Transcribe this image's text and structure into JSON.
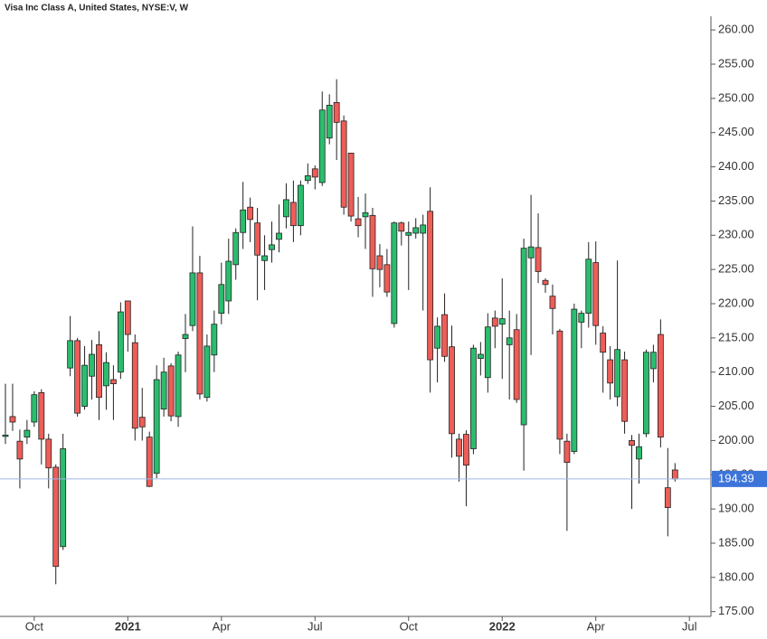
{
  "chart_data": {
    "type": "candlestick",
    "title": "Visa Inc Class A, United States, NYSE:V, W",
    "categories": [
      null,
      null,
      null,
      null,
      "Oct",
      null,
      null,
      null,
      null,
      null,
      null,
      null,
      null,
      null,
      null,
      null,
      null,
      "2021",
      null,
      null,
      null,
      null,
      null,
      null,
      null,
      null,
      null,
      null,
      null,
      null,
      "Apr",
      null,
      null,
      null,
      null,
      null,
      null,
      null,
      null,
      null,
      null,
      null,
      null,
      "Jul",
      null,
      null,
      null,
      null,
      null,
      null,
      null,
      null,
      null,
      null,
      null,
      null,
      "Oct",
      null,
      null,
      null,
      null,
      null,
      null,
      null,
      null,
      null,
      null,
      null,
      null,
      "2022",
      null,
      null,
      null,
      null,
      null,
      null,
      null,
      null,
      null,
      null,
      null,
      null,
      "Apr",
      null,
      null,
      null,
      null,
      null,
      null,
      null,
      null,
      null,
      null,
      null,
      null,
      "Jul"
    ],
    "open": [
      200.6,
      203.5,
      199.9,
      200.5,
      202.7,
      207,
      200.2,
      196.1,
      184.5,
      210.6,
      214.6,
      205,
      209.4,
      214,
      208,
      208.9,
      210,
      220.4,
      214.3,
      203.4,
      200.5,
      195.2,
      204.6,
      210.9,
      203.5,
      214.9,
      216.8,
      224.5,
      206.3,
      212.5,
      218.6,
      220.4,
      225.7,
      230.4,
      234.1,
      231.8,
      226.3,
      227.9,
      229.4,
      232.7,
      234.8,
      231.4,
      238,
      239.7,
      237.7,
      244.2,
      249.4,
      246.7,
      242,
      232.4,
      232.7,
      232.9,
      227,
      225.7,
      217.1,
      231.8,
      230,
      230.3,
      230.3,
      233.5,
      213.5,
      218.4,
      213.7,
      200.2,
      200.9,
      198.8,
      212,
      209.2,
      217.9,
      217,
      214,
      216.2,
      202.3,
      226.7,
      228.2,
      223.4,
      221.1,
      216,
      199.9,
      198.4,
      217.3,
      218.6,
      226,
      215.7,
      211.8,
      206.4,
      211.8,
      200,
      197.3,
      201,
      210.5,
      215.5,
      193.1,
      195.7,
      null,
      null
    ],
    "high": [
      208.3,
      208.3,
      201.6,
      203,
      207.2,
      207.5,
      201,
      196.5,
      201,
      218.2,
      215,
      213.8,
      214.7,
      216,
      212.9,
      211,
      220.2,
      220.4,
      215.5,
      207.7,
      201.3,
      211,
      212.1,
      211.3,
      213,
      218.5,
      231.3,
      227,
      215.5,
      219,
      226,
      229.5,
      231,
      237.8,
      235.5,
      234,
      230,
      232,
      234.5,
      237.6,
      238,
      238,
      240.5,
      240.2,
      251,
      250.6,
      252.8,
      247.5,
      242,
      235.6,
      236.1,
      234,
      228.7,
      228,
      232,
      232,
      232,
      232.5,
      233,
      237,
      218,
      221.5,
      216.8,
      201,
      201.5,
      214,
      214.4,
      218.6,
      219,
      223.7,
      219,
      218.5,
      229.5,
      235.9,
      233.2,
      223.7,
      222.8,
      216.3,
      201,
      220,
      219,
      229,
      229.1,
      216.7,
      213.8,
      226.3,
      213,
      200.8,
      201,
      213.3,
      214,
      217.7,
      198.9,
      196.7,
      null,
      null
    ],
    "low": [
      199.5,
      201.4,
      193,
      199.5,
      202,
      196.5,
      193,
      179,
      184,
      209.4,
      203.5,
      204.5,
      206,
      203,
      204.5,
      203,
      209,
      213,
      200,
      200,
      193.2,
      194.5,
      203.5,
      202.8,
      202,
      210,
      216,
      206,
      205.7,
      210,
      217,
      218.5,
      223.5,
      228,
      229,
      220.5,
      222,
      226,
      227.5,
      231,
      229,
      230,
      237.5,
      236.7,
      237.2,
      243.3,
      241,
      233,
      232,
      229.7,
      228,
      221,
      222.4,
      221,
      216.5,
      228.5,
      222,
      229.5,
      219,
      207,
      208.5,
      211.5,
      197.5,
      194,
      190.4,
      198,
      209.5,
      207,
      213.5,
      209,
      206,
      205.5,
      195.6,
      212.5,
      223,
      221.6,
      215.5,
      198,
      186.8,
      198,
      213.5,
      216.5,
      214,
      207,
      206,
      205,
      201,
      190,
      193.7,
      200.5,
      208.5,
      199,
      186,
      194,
      null,
      null
    ],
    "close": [
      200.8,
      202.7,
      197.3,
      201.5,
      206.7,
      200.2,
      196,
      181.6,
      198.8,
      214.6,
      204,
      211,
      212.6,
      206.3,
      211.4,
      208.3,
      218.8,
      215.5,
      201.8,
      202,
      193.3,
      208.9,
      210,
      203.6,
      212.5,
      215.5,
      224.5,
      206.8,
      213.8,
      217,
      222.8,
      226.2,
      230.4,
      233.7,
      232.3,
      227.1,
      227,
      228.6,
      230.3,
      235.2,
      231.4,
      237.3,
      238.7,
      238.5,
      248.3,
      249,
      246.5,
      234.1,
      232.8,
      231.4,
      233.3,
      225.1,
      225,
      221.7,
      231.8,
      230.6,
      230.4,
      231.1,
      231.5,
      211.8,
      216.7,
      212.3,
      201,
      197.7,
      196.4,
      213.5,
      212.6,
      216.6,
      216.7,
      217.8,
      215,
      206,
      228.1,
      228.3,
      224.7,
      222.8,
      219.3,
      200.2,
      196.8,
      219.2,
      218.6,
      226.5,
      216.8,
      212.9,
      208.4,
      213.3,
      202.8,
      199.3,
      199.1,
      212.9,
      212.9,
      200.5,
      190.2,
      194.39,
      null,
      null
    ],
    "up_color": "#2bbd6e",
    "down_color": "#ee5d57",
    "last_price": 194.39,
    "ylim": [
      174.3,
      262
    ],
    "yticks": [
      {
        "value": 175,
        "label": "175.00"
      },
      {
        "value": 180,
        "label": "180.00"
      },
      {
        "value": 185,
        "label": "185.00"
      },
      {
        "value": 190,
        "label": "190.00"
      },
      {
        "value": 195,
        "label": "195.00"
      },
      {
        "value": 200,
        "label": "200.00"
      },
      {
        "value": 205,
        "label": "205.00"
      },
      {
        "value": 210,
        "label": "210.00"
      },
      {
        "value": 215,
        "label": "215.00"
      },
      {
        "value": 220,
        "label": "220.00"
      },
      {
        "value": 225,
        "label": "225.00"
      },
      {
        "value": 230,
        "label": "230.00"
      },
      {
        "value": 235,
        "label": "235.00"
      },
      {
        "value": 240,
        "label": "240.00"
      },
      {
        "value": 245,
        "label": "245.00"
      },
      {
        "value": 250,
        "label": "250.00"
      },
      {
        "value": 255,
        "label": "255.00"
      },
      {
        "value": 260,
        "label": "260.00"
      }
    ]
  }
}
